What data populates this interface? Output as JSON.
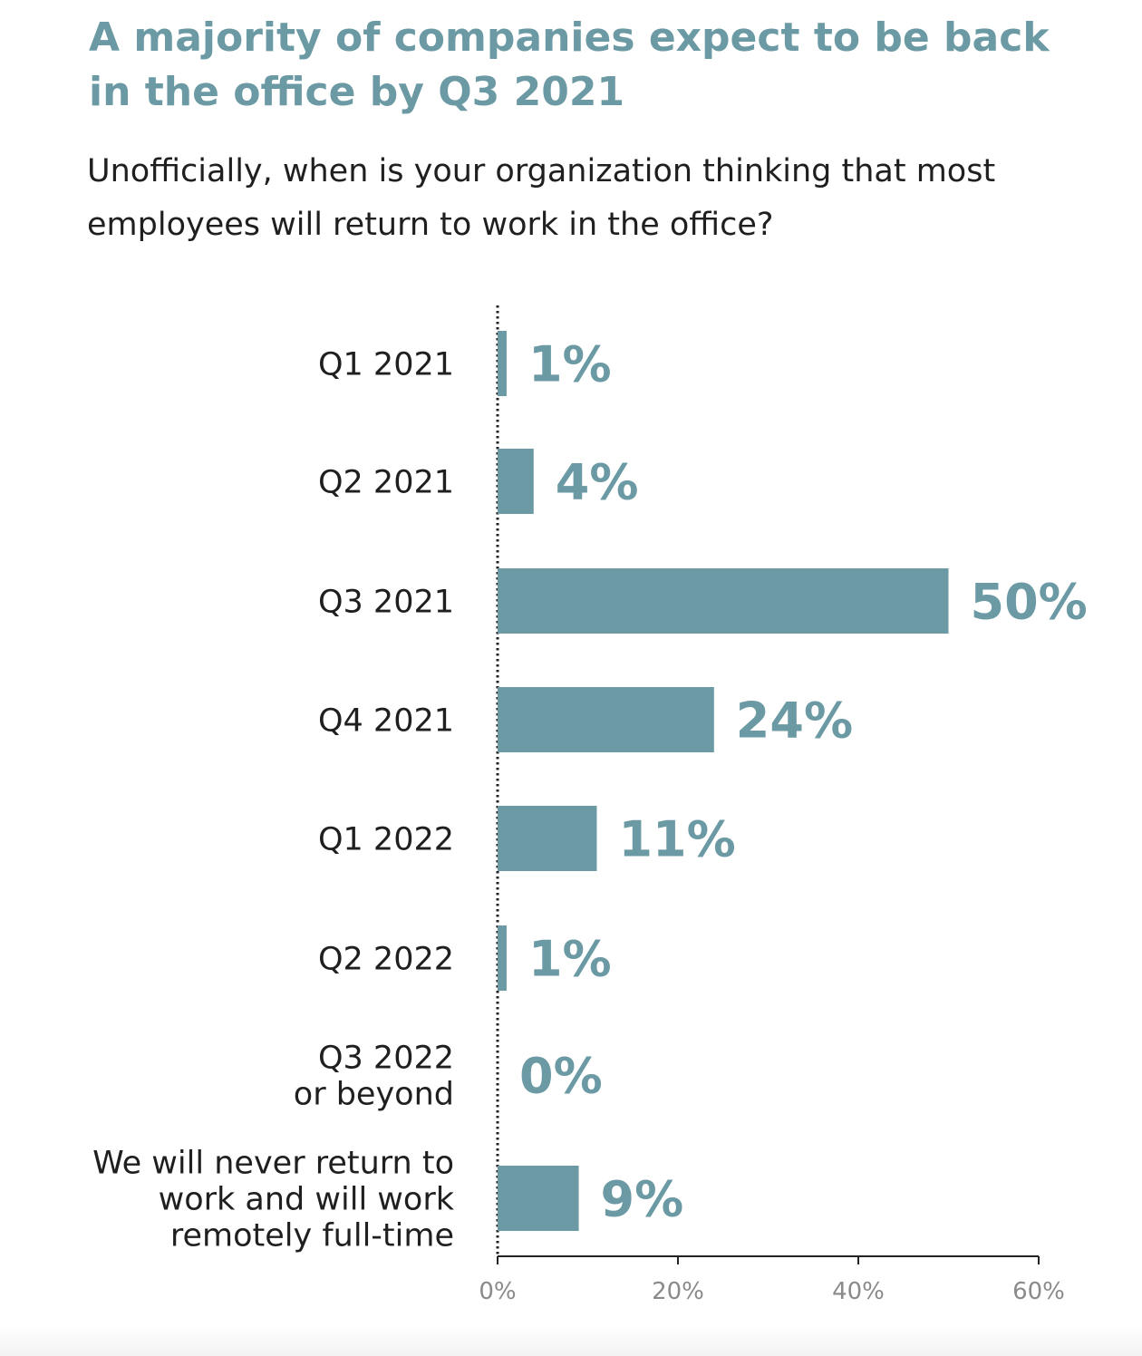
{
  "title": "A majority of companies expect to be back in the office by Q3 2021",
  "subtitle": "Unofficially, when is your organization thinking that most employees will return to work in the office?",
  "colors": {
    "bar": "#6b9aa4",
    "value_label": "#6b9aa4",
    "title": "#6b9aa4",
    "axis": "#222222",
    "tick_label": "#8a8a8a"
  },
  "chart_data": {
    "type": "bar",
    "orientation": "horizontal",
    "categories": [
      [
        "Q1 2021"
      ],
      [
        "Q2 2021"
      ],
      [
        "Q3 2021"
      ],
      [
        "Q4 2021"
      ],
      [
        "Q1 2022"
      ],
      [
        "Q2 2022"
      ],
      [
        "Q3 2022",
        "or beyond"
      ],
      [
        "We will never return to",
        "work and will work",
        "remotely full-time"
      ]
    ],
    "values": [
      1,
      4,
      50,
      24,
      11,
      1,
      0,
      9
    ],
    "value_labels": [
      "1%",
      "4%",
      "50%",
      "24%",
      "11%",
      "1%",
      "0%",
      "9%"
    ],
    "xlim": [
      0,
      60
    ],
    "xticks": [
      0,
      20,
      40,
      60
    ],
    "xtick_labels": [
      "0%",
      "20%",
      "40%",
      "60%"
    ],
    "grid": false,
    "legend": "none"
  }
}
